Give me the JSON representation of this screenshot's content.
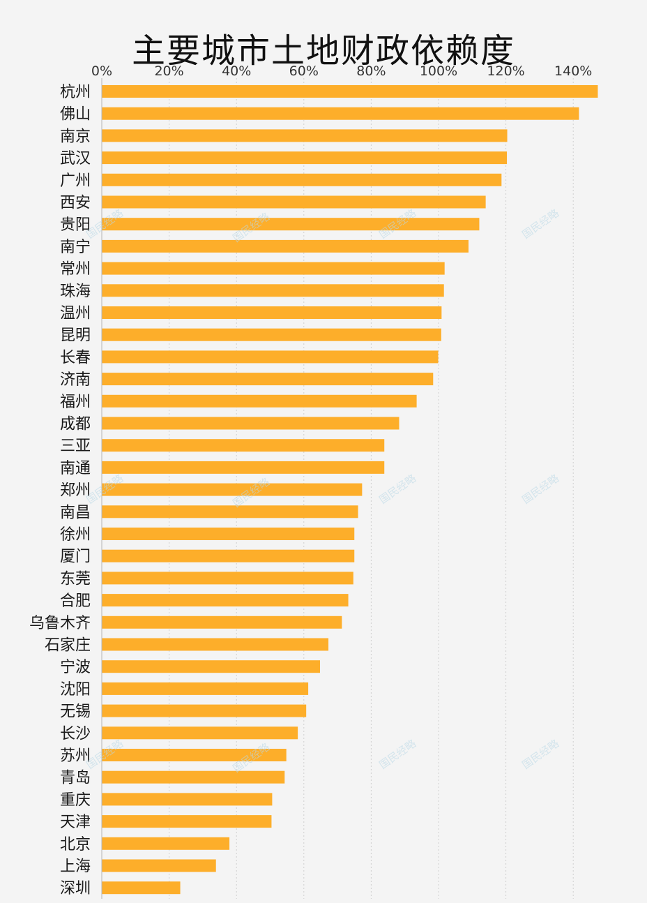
{
  "chart_data": {
    "type": "bar",
    "orientation": "horizontal",
    "title": "主要城市土地财政依赖度",
    "xlabel": "",
    "ylabel": "",
    "xlim": [
      0,
      148
    ],
    "xticks": [
      0,
      20,
      40,
      60,
      80,
      100,
      120,
      140
    ],
    "xtick_labels": [
      "0%",
      "20%",
      "40%",
      "60%",
      "80%",
      "100%",
      "120%",
      "140%"
    ],
    "grid": true,
    "legend": "none",
    "bar_color": "#fdae2a",
    "categories": [
      "杭州",
      "佛山",
      "南京",
      "武汉",
      "广州",
      "西安",
      "贵阳",
      "南宁",
      "常州",
      "珠海",
      "温州",
      "昆明",
      "长春",
      "济南",
      "福州",
      "成都",
      "三亚",
      "南通",
      "郑州",
      "南昌",
      "徐州",
      "厦门",
      "东莞",
      "合肥",
      "乌鲁木齐",
      "石家庄",
      "宁波",
      "沈阳",
      "无锡",
      "长沙",
      "苏州",
      "青岛",
      "重庆",
      "天津",
      "北京",
      "上海",
      "深圳"
    ],
    "values": [
      147.3,
      141.7,
      120.4,
      120.3,
      118.7,
      114.0,
      112.1,
      108.9,
      101.8,
      101.6,
      100.9,
      100.8,
      99.9,
      98.4,
      93.5,
      88.3,
      83.9,
      83.9,
      77.3,
      76.1,
      75.0,
      75.0,
      74.7,
      73.2,
      71.3,
      67.3,
      64.8,
      61.3,
      60.7,
      58.2,
      54.8,
      54.3,
      50.6,
      50.4,
      37.9,
      33.9,
      23.3
    ]
  },
  "watermark": {
    "text": "国民经略"
  }
}
